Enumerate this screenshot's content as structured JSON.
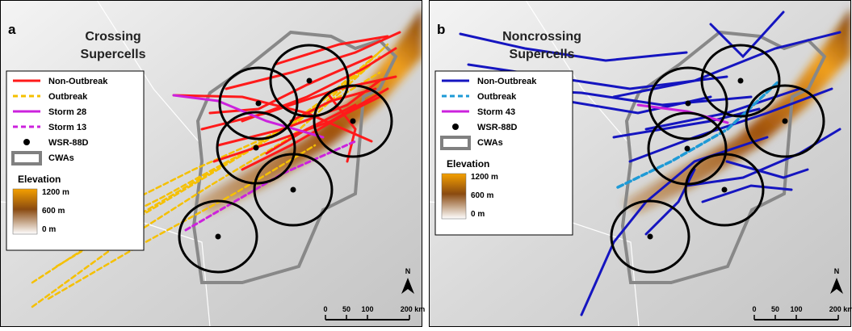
{
  "panels": [
    {
      "label": "a",
      "title": [
        "Crossing",
        "Supercells"
      ],
      "legend": [
        {
          "label": "Non-Outbreak",
          "color": "#ff1a1a",
          "style": "solid"
        },
        {
          "label": "Outbreak",
          "color": "#f5c000",
          "style": "dashed"
        },
        {
          "label": "Storm 28",
          "color": "#cc22dd",
          "style": "solid"
        },
        {
          "label": "Storm 13",
          "color": "#cc22dd",
          "style": "dashed"
        },
        {
          "label": "WSR-88D",
          "color": "#000000",
          "style": "dot"
        },
        {
          "label": "CWAs",
          "color": "#808080",
          "style": "box"
        }
      ],
      "elevation": {
        "title": "Elevation",
        "labels": [
          "1200 m",
          "600 m",
          "0 m"
        ]
      },
      "scale": [
        "0",
        "50",
        "100",
        "200 km"
      ],
      "north": "N"
    },
    {
      "label": "b",
      "title": [
        "Noncrossing",
        "Supercells"
      ],
      "legend": [
        {
          "label": "Non-Outbreak",
          "color": "#1515c0",
          "style": "solid"
        },
        {
          "label": "Outbreak",
          "color": "#1e9ad6",
          "style": "dashed"
        },
        {
          "label": "Storm 43",
          "color": "#cc22dd",
          "style": "solid"
        },
        {
          "label": "WSR-88D",
          "color": "#000000",
          "style": "dot"
        },
        {
          "label": "CWAs",
          "color": "#808080",
          "style": "box"
        }
      ],
      "elevation": {
        "title": "Elevation",
        "labels": [
          "1200 m",
          "600 m",
          "0 m"
        ]
      },
      "scale": [
        "0",
        "50",
        "100",
        "200 km"
      ],
      "north": "N"
    }
  ]
}
